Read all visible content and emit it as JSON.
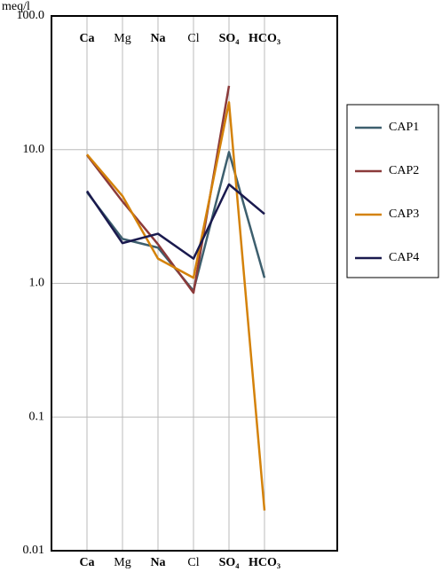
{
  "chart_data": {
    "type": "line",
    "y_label": "meq/l",
    "categories": [
      "Ca",
      "Mg",
      "Na",
      "Cl",
      "SO₄",
      "HCO₃"
    ],
    "log_y": true,
    "grid": true,
    "ylim": [
      0.01,
      100
    ],
    "yticks": [
      {
        "value": 100,
        "label": "100.0"
      },
      {
        "value": 10,
        "label": "10.0"
      },
      {
        "value": 1,
        "label": "1.0"
      },
      0.1,
      0.01
    ],
    "legend": "right",
    "series": [
      {
        "name": "CAP1",
        "color": "#3d5f6e",
        "values": [
          4.8,
          2.15,
          1.85,
          0.88,
          9.6,
          1.1
        ]
      },
      {
        "name": "CAP2",
        "color": "#8b3a3a",
        "values": [
          9.1,
          4.1,
          1.96,
          0.85,
          30,
          null
        ]
      },
      {
        "name": "CAP3",
        "color": "#d4820a",
        "values": [
          9.2,
          4.5,
          1.53,
          1.1,
          22.6,
          0.02
        ]
      },
      {
        "name": "CAP4",
        "color": "#1a1a4e",
        "values": [
          4.9,
          2.0,
          2.35,
          1.53,
          5.5,
          3.3
        ]
      }
    ]
  }
}
